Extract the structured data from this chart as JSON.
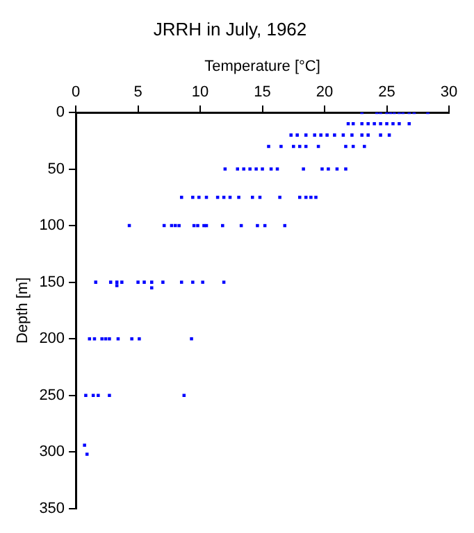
{
  "chart_data": {
    "type": "scatter",
    "title": "JRRH in July, 1962",
    "xlabel": "Temperature [°C]",
    "ylabel": "Depth [m]",
    "xlim": [
      0,
      30
    ],
    "xticks": [
      0,
      5,
      10,
      15,
      20,
      25,
      30
    ],
    "ylim": [
      350,
      0
    ],
    "yticks": [
      0,
      50,
      100,
      150,
      200,
      250,
      300,
      350
    ],
    "grid": false,
    "legend": false,
    "marker": "square",
    "series": [
      {
        "color": "#0000ff",
        "x": [
          23,
          24.2,
          24.5,
          25,
          25.3,
          25.6,
          26,
          26.3,
          26.8,
          27.2,
          28.3,
          21.9,
          22.3,
          23,
          23.5,
          24,
          24.5,
          25,
          25.5,
          26,
          26.8,
          17.3,
          17.8,
          18.5,
          19.2,
          19.7,
          20.2,
          20.8,
          21.5,
          22.2,
          23,
          23.5,
          24.5,
          25.2,
          15.5,
          16.5,
          17.5,
          18,
          18.5,
          19.5,
          21.7,
          22.3,
          23.2,
          12,
          13,
          13.5,
          14,
          14.5,
          15,
          15.7,
          16.2,
          18.3,
          19.8,
          20.3,
          21,
          21.7,
          8.5,
          9.4,
          9.9,
          10.5,
          11.4,
          11.9,
          12.4,
          13.1,
          14.2,
          14.8,
          16.4,
          18,
          18.5,
          18.9,
          19.3,
          4.3,
          7.1,
          7.7,
          8,
          8.3,
          9.5,
          9.8,
          10.3,
          10.5,
          11.8,
          13.3,
          14.6,
          15.2,
          16.8,
          1.6,
          2.8,
          3.3,
          3.7,
          5,
          5.5,
          6.1,
          7,
          8.5,
          9.4,
          10.2,
          11.9,
          3.3,
          6.1,
          1.1,
          1.5,
          2.1,
          2.4,
          2.7,
          3.4,
          4.5,
          5.1,
          9.3,
          0.8,
          1.4,
          1.8,
          2.7,
          8.7,
          0.7,
          0.9
        ],
        "values": [
          0,
          0,
          0,
          0,
          0,
          0,
          0,
          0,
          0,
          0,
          0,
          10,
          10,
          10,
          10,
          10,
          10,
          10,
          10,
          10,
          10,
          20,
          20,
          20,
          20,
          20,
          20,
          20,
          20,
          20,
          20,
          20,
          20,
          20,
          30,
          30,
          30,
          30,
          30,
          30,
          30,
          30,
          30,
          50,
          50,
          50,
          50,
          50,
          50,
          50,
          50,
          50,
          50,
          50,
          50,
          50,
          75,
          75,
          75,
          75,
          75,
          75,
          75,
          75,
          75,
          75,
          75,
          75,
          75,
          75,
          75,
          100,
          100,
          100,
          100,
          100,
          100,
          100,
          100,
          100,
          100,
          100,
          100,
          100,
          100,
          150,
          150,
          150,
          150,
          150,
          150,
          150,
          150,
          150,
          150,
          150,
          150,
          153,
          155,
          200,
          200,
          200,
          200,
          200,
          200,
          200,
          200,
          200,
          250,
          250,
          250,
          250,
          250,
          294,
          302
        ]
      }
    ]
  }
}
